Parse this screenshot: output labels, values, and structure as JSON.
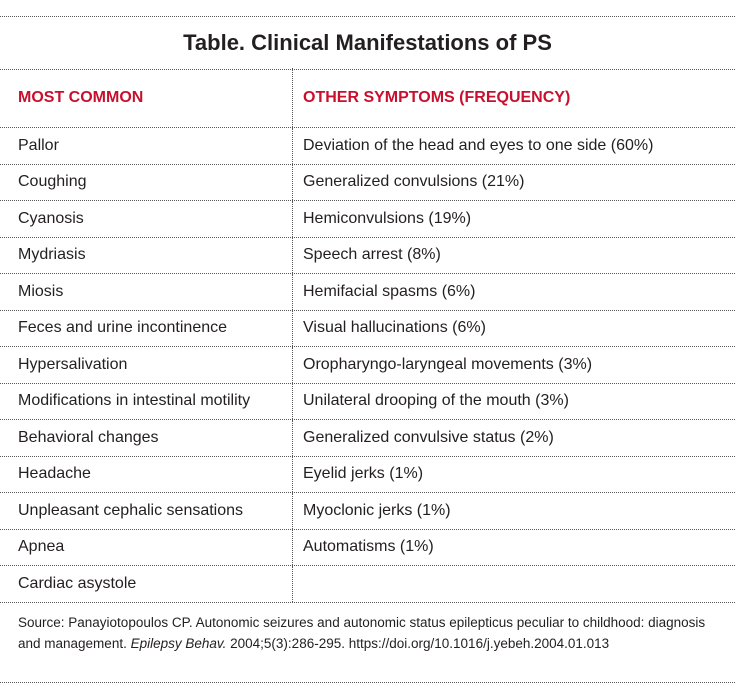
{
  "title": "Table. Clinical Manifestations of PS",
  "colors": {
    "header_red": "#c8102e",
    "text": "#231f20"
  },
  "columns": [
    "MOST COMMON",
    "OTHER SYMPTOMS (FREQUENCY)"
  ],
  "rows": [
    [
      "Pallor",
      "Deviation of the head and eyes to one side (60%)"
    ],
    [
      "Coughing",
      "Generalized convulsions (21%)"
    ],
    [
      "Cyanosis",
      "Hemiconvulsions (19%)"
    ],
    [
      "Mydriasis",
      "Speech arrest (8%)"
    ],
    [
      "Miosis",
      "Hemifacial spasms (6%)"
    ],
    [
      "Feces and urine incontinence",
      "Visual hallucinations (6%)"
    ],
    [
      "Hypersalivation",
      "Oropharyngo-laryngeal movements (3%)"
    ],
    [
      "Modifications in intestinal motility",
      "Unilateral drooping of the mouth (3%)"
    ],
    [
      "Behavioral changes",
      "Generalized convulsive status (2%)"
    ],
    [
      "Headache",
      "Eyelid jerks (1%)"
    ],
    [
      "Unpleasant cephalic sensations",
      "Myoclonic jerks (1%)"
    ],
    [
      "Apnea",
      "Automatisms (1%)"
    ],
    [
      "Cardiac asystole",
      ""
    ]
  ],
  "source": {
    "prefix": "Source: Panayiotopoulos CP. Autonomic seizures and autonomic status epilepticus peculiar to childhood: diagnosis and management. ",
    "journal": "Epilepsy Behav.",
    "suffix": "  2004;5(3):286-295. https://doi.org/10.1016/j.yebeh.2004.01.013"
  }
}
